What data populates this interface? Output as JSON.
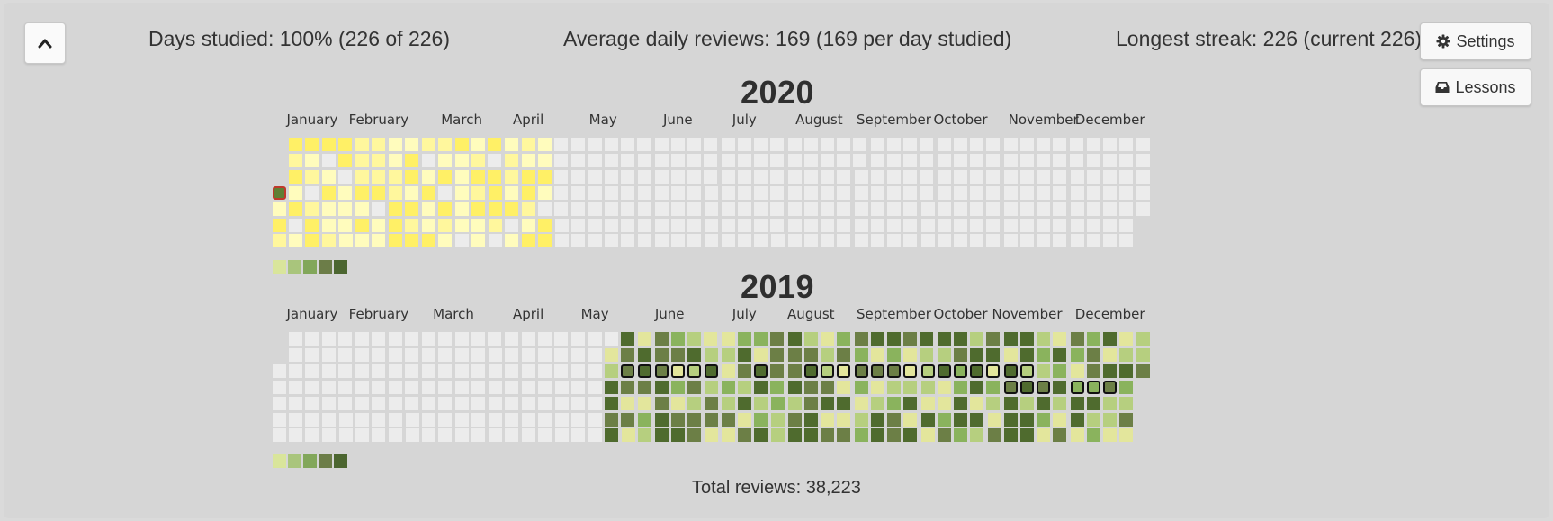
{
  "stats": {
    "days_studied": "Days studied: 100% (226 of 226)",
    "average_daily": "Average daily reviews: 169 (169 per day studied)",
    "longest_streak": "Longest streak: 226 (current 226)"
  },
  "buttons": {
    "collapse_icon": "chevron-up-icon",
    "settings_label": "Settings",
    "settings_icon": "gear-icon",
    "lessons_label": "Lessons",
    "lessons_icon": "inbox-icon"
  },
  "months": [
    "January",
    "February",
    "March",
    "April",
    "May",
    "June",
    "July",
    "August",
    "September",
    "October",
    "November",
    "December"
  ],
  "colors": {
    "empty": "#ececec",
    "future_levels": [
      "#fffcbd",
      "#fff79d",
      "#fff066"
    ],
    "review_levels": [
      "#e3e69c",
      "#b6cf7f",
      "#8ab35d",
      "#6c7f46",
      "#4f6b2e"
    ],
    "selected_border": "#c0392b",
    "streak_border": "#111111"
  },
  "calendars": [
    {
      "year": "2020",
      "legend": [
        "#d9e59b",
        "#a9c57c",
        "#82a75a",
        "#6c7d48",
        "#4c6630"
      ]
    },
    {
      "year": "2019",
      "legend": [
        "#d9e59b",
        "#a9c57c",
        "#82a75a",
        "#6c7d48",
        "#4c6630"
      ]
    }
  ],
  "footer": {
    "total_reviews": "Total reviews: 38,223"
  }
}
